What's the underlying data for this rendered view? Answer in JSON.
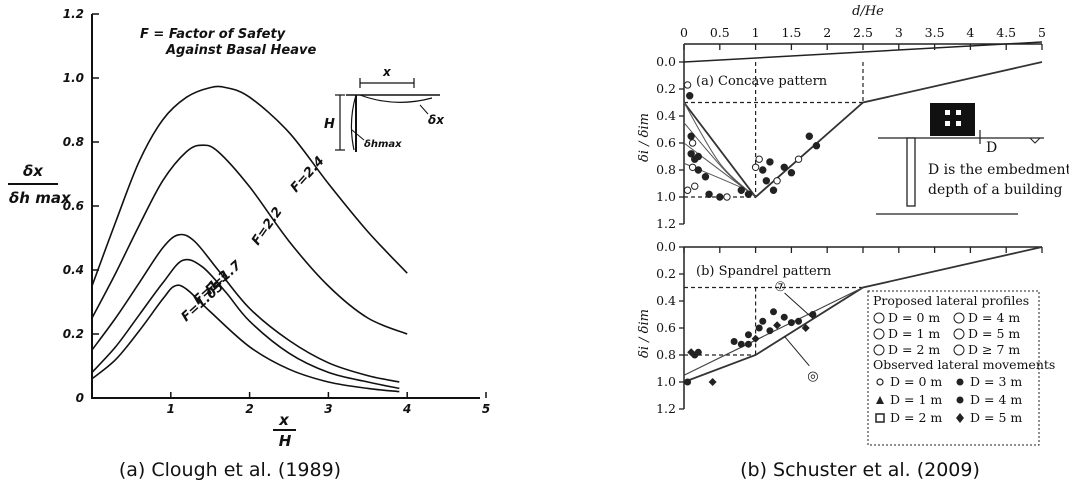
{
  "captions": {
    "a": "(a) Clough et al. (1989)",
    "b": "(b) Schuster et al. (2009)"
  },
  "chart_data": [
    {
      "type": "line",
      "panel": "a",
      "title": "F = Factor of Safety",
      "title_line2": "Against Basal Heave",
      "xlabel_num": "x",
      "xlabel_den": "H",
      "ylabel_num": "δx",
      "ylabel_den": "δh max",
      "inset": {
        "x": "x",
        "H": "H",
        "dx": "δx",
        "dh": "δhmax"
      },
      "xlim": [
        0,
        5
      ],
      "ylim": [
        0,
        1.2
      ],
      "x_ticks": [
        "1",
        "2",
        "3",
        "4",
        "5"
      ],
      "y_ticks": [
        "0",
        "0.2",
        "0.4",
        "0.6",
        "0.8",
        "1.0",
        "1.2"
      ],
      "series": [
        {
          "name": "F=2.4",
          "x": [
            0,
            0.3,
            0.6,
            0.9,
            1.2,
            1.5,
            1.7,
            2.0,
            2.5,
            3.0,
            3.5,
            4.0
          ],
          "y": [
            0.35,
            0.55,
            0.74,
            0.87,
            0.94,
            0.97,
            0.97,
            0.94,
            0.83,
            0.67,
            0.52,
            0.39
          ]
        },
        {
          "name": "F=2.2",
          "x": [
            0,
            0.3,
            0.6,
            0.9,
            1.2,
            1.4,
            1.6,
            2.0,
            2.5,
            3.0,
            3.5,
            4.0
          ],
          "y": [
            0.25,
            0.39,
            0.54,
            0.68,
            0.77,
            0.79,
            0.77,
            0.66,
            0.49,
            0.35,
            0.25,
            0.2
          ]
        },
        {
          "name": "F=1.7",
          "x": [
            0,
            0.3,
            0.6,
            0.9,
            1.1,
            1.3,
            1.6,
            2.0,
            2.5,
            3.0,
            3.5,
            3.9
          ],
          "y": [
            0.15,
            0.25,
            0.36,
            0.47,
            0.51,
            0.49,
            0.4,
            0.28,
            0.18,
            0.11,
            0.07,
            0.05
          ]
        },
        {
          "name": "F=1.3",
          "x": [
            0,
            0.3,
            0.6,
            0.9,
            1.15,
            1.4,
            1.7,
            2.0,
            2.5,
            3.0,
            3.5,
            3.9
          ],
          "y": [
            0.08,
            0.16,
            0.26,
            0.36,
            0.43,
            0.41,
            0.33,
            0.24,
            0.14,
            0.08,
            0.05,
            0.03
          ]
        },
        {
          "name": "F=1.05",
          "x": [
            0,
            0.3,
            0.6,
            0.9,
            1.05,
            1.2,
            1.5,
            2.0,
            2.5,
            3.0,
            3.5,
            3.9
          ],
          "y": [
            0.06,
            0.12,
            0.21,
            0.31,
            0.35,
            0.34,
            0.27,
            0.16,
            0.09,
            0.05,
            0.03,
            0.02
          ]
        }
      ],
      "curve_labels": [
        "F=2.4",
        "F=2.2",
        "F=1.7",
        "F=1.3",
        "F=1.05"
      ]
    },
    {
      "type": "line",
      "panel": "b-top",
      "top_axis_label": "d/He",
      "ylabel": "δi / δim",
      "annotation": "(a) Concave pattern",
      "xlim": [
        0,
        5
      ],
      "ylim": [
        0,
        1.2
      ],
      "x_ticks": [
        "0",
        "0.5",
        "1",
        "1.5",
        "2",
        "2.5",
        "3",
        "3.5",
        "4",
        "4.5",
        "5"
      ],
      "y_ticks": [
        "0.0",
        "0.2",
        "0.4",
        "0.6",
        "0.8",
        "1.0",
        "1.2"
      ],
      "envelope": {
        "x": [
          0,
          1,
          2.5,
          5
        ],
        "y": [
          0.3,
          1.0,
          0.3,
          0
        ]
      },
      "dashed_guides": {
        "x": [
          1,
          2.5
        ],
        "y": [
          0.3,
          1.0
        ]
      },
      "proposed_curves": [
        {
          "name": "0",
          "x": [
            0,
            0.5,
            1
          ],
          "y": [
            0.3,
            0.75,
            1.0
          ]
        },
        {
          "name": "1",
          "x": [
            0,
            0.6,
            1
          ],
          "y": [
            0.45,
            0.82,
            1.0
          ]
        },
        {
          "name": "2",
          "x": [
            0,
            0.7,
            1
          ],
          "y": [
            0.6,
            0.88,
            1.0
          ]
        },
        {
          "name": "4",
          "x": [
            0,
            0.8,
            1
          ],
          "y": [
            0.75,
            0.93,
            1.0
          ]
        }
      ],
      "observed_points": {
        "x": [
          0.05,
          0.08,
          0.1,
          0.12,
          0.1,
          0.15,
          0.12,
          0.2,
          0.3,
          0.15,
          0.35,
          0.5,
          0.6,
          0.8,
          0.9,
          1.05,
          1.1,
          1.2,
          1.3,
          1.4,
          1.5,
          1.6,
          1.75,
          1.85,
          1.0,
          1.15,
          1.25,
          0.05,
          0.2
        ],
        "y": [
          0.17,
          0.25,
          0.55,
          0.6,
          0.68,
          0.72,
          0.78,
          0.8,
          0.85,
          0.92,
          0.98,
          1.0,
          1.0,
          0.95,
          0.98,
          0.72,
          0.8,
          0.74,
          0.88,
          0.78,
          0.82,
          0.72,
          0.55,
          0.62,
          0.78,
          0.88,
          0.95,
          0.95,
          0.7
        ]
      },
      "building_note_line1": "D is the embedment",
      "building_note_line2": "depth of a building",
      "building_label": "D"
    },
    {
      "type": "line",
      "panel": "b-bottom",
      "ylabel": "δi / δim",
      "annotation": "(b) Spandrel pattern",
      "xlim": [
        0,
        5
      ],
      "ylim": [
        0,
        1.2
      ],
      "y_ticks": [
        "0.0",
        "0.2",
        "0.4",
        "0.6",
        "0.8",
        "1.0",
        "1.2"
      ],
      "envelope_low": {
        "x": [
          0,
          1,
          2.5,
          5
        ],
        "y": [
          1.0,
          0.8,
          0.3,
          0
        ]
      },
      "proposed_line": {
        "x": [
          0,
          2.5
        ],
        "y": [
          0.95,
          0.3
        ]
      },
      "dashed_guides": {
        "x": [
          1,
          2.5
        ],
        "y": [
          0.3,
          0.8
        ]
      },
      "observed_points": {
        "x": [
          0.1,
          0.15,
          0.2,
          0.05,
          0.4,
          0.7,
          0.8,
          0.9,
          1.0,
          1.05,
          1.1,
          1.2,
          1.3,
          1.4,
          1.5,
          1.6,
          1.7,
          1.8,
          0.9,
          1.25
        ],
        "y": [
          0.78,
          0.8,
          0.78,
          1.0,
          1.0,
          0.7,
          0.72,
          0.65,
          0.68,
          0.6,
          0.55,
          0.62,
          0.58,
          0.52,
          0.56,
          0.55,
          0.6,
          0.5,
          0.72,
          0.48
        ]
      },
      "legend": {
        "heading1": "Proposed lateral profiles",
        "proposed": [
          "D = 0 m",
          "D = 4 m",
          "D = 1 m",
          "D = 5 m",
          "D = 2 m",
          "D ≥ 7 m"
        ],
        "heading2": "Observed lateral movements",
        "observed": [
          "D = 0 m",
          "D = 3 m",
          "D = 1 m",
          "D = 4 m",
          "D = 2 m",
          "D = 5 m"
        ]
      },
      "pointer_labels": [
        "⑦",
        "◎"
      ]
    }
  ]
}
